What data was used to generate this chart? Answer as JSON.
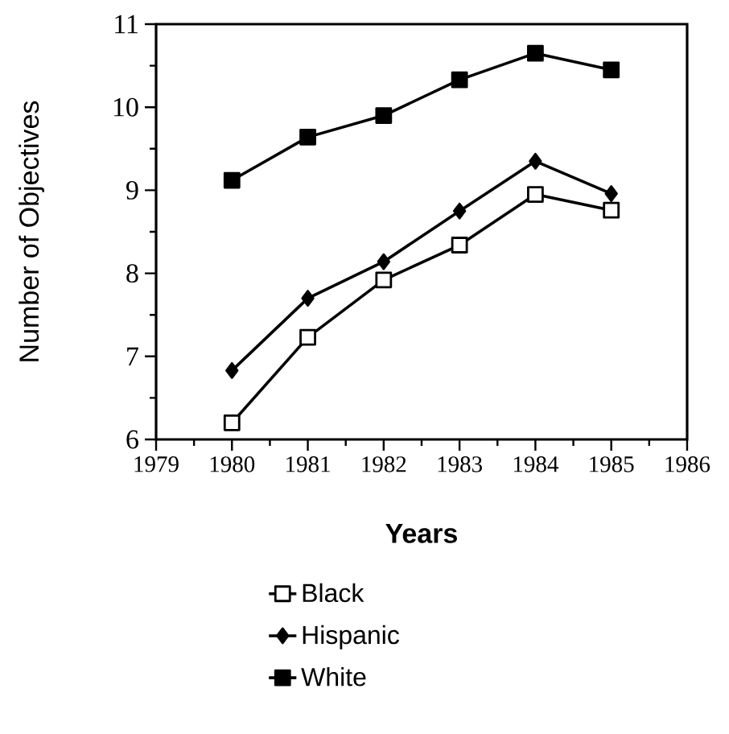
{
  "chart_data": {
    "type": "line",
    "xlabel": "Years",
    "ylabel": "Number of Objectives",
    "x": [
      1980,
      1981,
      1982,
      1983,
      1984,
      1985
    ],
    "xlim": [
      1979,
      1986
    ],
    "xticks": [
      1979,
      1980,
      1981,
      1982,
      1983,
      1984,
      1985,
      1986
    ],
    "ylim": [
      6,
      11
    ],
    "yticks": [
      6,
      7,
      8,
      9,
      10,
      11
    ],
    "legend": "bottom",
    "grid": false,
    "series": [
      {
        "name": "Black",
        "color": "#000000",
        "marker": "square",
        "values": [
          6.2,
          7.23,
          7.92,
          8.34,
          8.95,
          8.76
        ]
      },
      {
        "name": "Hispanic",
        "color": "#000000",
        "marker": "diamond",
        "values": [
          6.83,
          7.7,
          8.14,
          8.75,
          9.35,
          8.96
        ]
      },
      {
        "name": "White",
        "color": "#000000",
        "marker": "square",
        "values": [
          9.12,
          9.64,
          9.9,
          10.33,
          10.65,
          10.45
        ]
      }
    ]
  }
}
